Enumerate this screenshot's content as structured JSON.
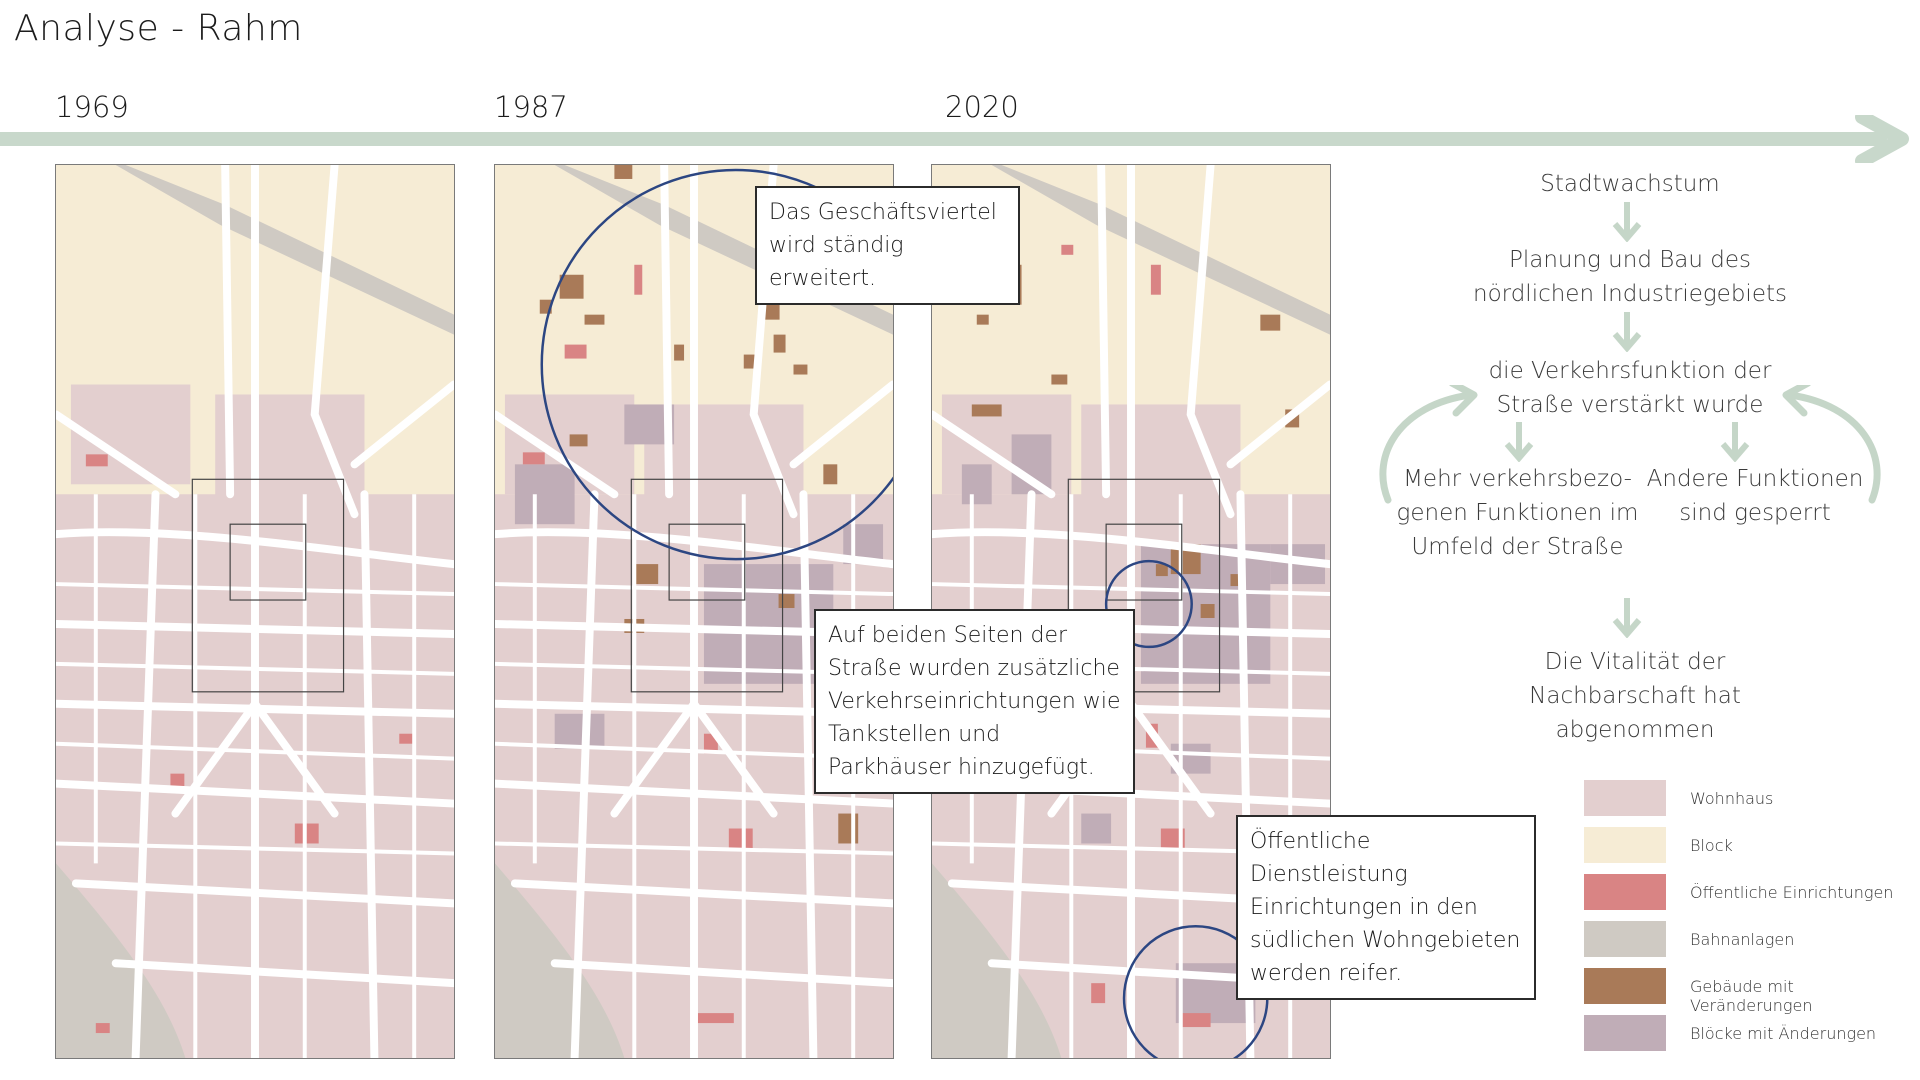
{
  "title": "Analyse - Rahm",
  "years": [
    "1969",
    "1987",
    "2020"
  ],
  "colors": {
    "residential": "#e3cfcf",
    "block": "#f6ecd5",
    "public": "#d98484",
    "rail": "#cfcac3",
    "changed_buildings": "#a97a58",
    "changed_blocks": "#c0adb7",
    "timeline": "#c8d8cb",
    "flow_arrow": "#c5d6c8",
    "circle": "#2c4682"
  },
  "callouts": {
    "business": "Das Geschäftsviertel wird ständig erweitert.",
    "traffic": "Auf beiden Seiten der Straße wurden zusätzliche Verkehrseinrichtungen wie Tankstellen und Parkhäuser hinzugefügt.",
    "public_services": "Öffentliche Dienstleistung Einrichtungen in den südlichen Wohngebieten werden reifer."
  },
  "flow": {
    "step1": "Stadtwachstum",
    "step2": "Planung und Bau des nördlichen Industriegebiets",
    "step3": "die Verkehrsfunktion der Straße verstärkt wurde",
    "left": "Mehr verkehrsbezo-genen Funktionen im Umfeld der Straße",
    "right": "Andere Funktionen sind gesperrt",
    "result": "Die Vitalität der Nachbarschaft hat abgenommen"
  },
  "legend": [
    {
      "label": "Wohnhaus",
      "color": "#e3cfcf"
    },
    {
      "label": "Block",
      "color": "#f6ecd5"
    },
    {
      "label": "Öffentliche Einrichtungen",
      "color": "#d98484"
    },
    {
      "label": "Bahnanlagen",
      "color": "#cfcac3"
    },
    {
      "label": "Gebäude mit Veränderungen",
      "color": "#a97a58"
    },
    {
      "label": "Blöcke mit Änderungen",
      "color": "#c0adb7"
    }
  ]
}
